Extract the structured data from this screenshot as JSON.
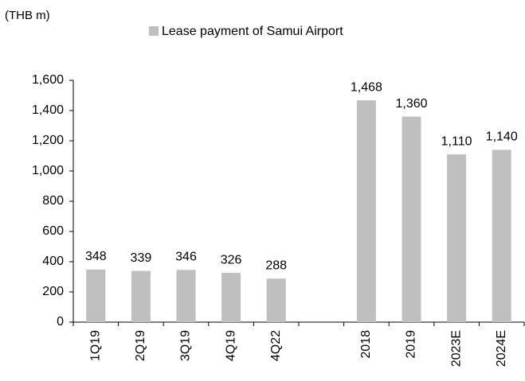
{
  "chart_data": {
    "type": "bar",
    "y_label": "(THB m)",
    "categories": [
      "1Q19",
      "2Q19",
      "3Q19",
      "4Q19",
      "4Q22",
      null,
      "2018",
      "2019",
      "2023E",
      "2024E"
    ],
    "series": [
      {
        "name": "Lease payment of Samui Airport",
        "color": "#bfbfbf",
        "values": [
          348,
          339,
          346,
          326,
          288,
          null,
          1468,
          1360,
          1110,
          1140
        ],
        "value_labels": [
          "348",
          "339",
          "346",
          "326",
          "288",
          null,
          "1,468",
          "1,360",
          "1,110",
          "1,140"
        ]
      }
    ],
    "ylim": [
      0,
      1600
    ],
    "yticks": [
      0,
      200,
      400,
      600,
      800,
      {
        "value": 1000,
        "label": "1,000"
      },
      {
        "value": 1200,
        "label": "1,200"
      },
      {
        "value": 1400,
        "label": "1,400"
      },
      {
        "value": 1600,
        "label": "1,600"
      }
    ],
    "grid": false
  }
}
